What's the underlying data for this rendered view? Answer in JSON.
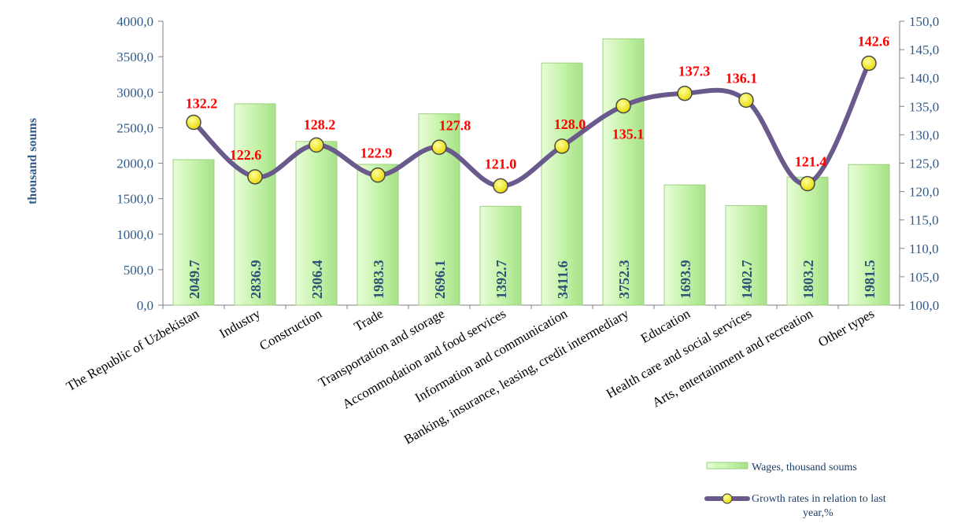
{
  "chart_data": {
    "type": "bar",
    "ylabel": "thousand soums",
    "categories": [
      "The Republic of Uzbekistan",
      "Industry",
      "Construction",
      "Trade",
      "Transportation and storage",
      "Accommodation and food services",
      "Information and communication",
      "Banking, insurance, leasing, credit intermediary",
      "Education",
      "Health care and social services",
      "Arts, entertainment and recreation",
      "Other types"
    ],
    "series": [
      {
        "name": "Wages, thousand soums",
        "type": "bar",
        "axis": "left",
        "values": [
          2049.7,
          2836.9,
          2306.4,
          1983.3,
          2696.1,
          1392.7,
          3411.6,
          3752.3,
          1693.9,
          1402.7,
          1803.2,
          1981.5
        ],
        "labels": [
          "2049.7",
          "2836.9",
          "2306.4",
          "1983.3",
          "2696.1",
          "1392.7",
          "3411.6",
          "3752.3",
          "1693.9",
          "1402.7",
          "1803.2",
          "1981.5"
        ]
      },
      {
        "name": "Growth rates in relation to last year,%",
        "type": "line",
        "axis": "right",
        "values": [
          132.2,
          122.6,
          128.2,
          122.9,
          127.8,
          121.0,
          128.0,
          135.1,
          137.3,
          136.1,
          121.4,
          142.6
        ],
        "labels": [
          "132.2",
          "122.6",
          "128.2",
          "122.9",
          "127.8",
          "121.0",
          "128.0",
          "135.1",
          "137.3",
          "136.1",
          "121.4",
          "142.6"
        ]
      }
    ],
    "left_axis": {
      "ylim": [
        0,
        4000
      ],
      "ticks": [
        "0,0",
        "500,0",
        "1000,0",
        "1500,0",
        "2000,0",
        "2500,0",
        "3000,0",
        "3500,0",
        "4000,0"
      ]
    },
    "right_axis": {
      "ylim": [
        100,
        150
      ],
      "ticks": [
        "100,0",
        "105,0",
        "110,0",
        "115,0",
        "120,0",
        "125,0",
        "130,0",
        "135,0",
        "140,0",
        "145,0",
        "150,0"
      ]
    },
    "legend_position": "bottom-right",
    "grid": false,
    "colors": {
      "bar_fill": "#c9f5b0",
      "bar_stroke": "#9ccf80",
      "line": "#6a5a8c",
      "marker": "#f4ee1c",
      "point_label": "#ff0000",
      "bar_label": "#2e5277",
      "axis_text": "#2f5b8a"
    }
  }
}
